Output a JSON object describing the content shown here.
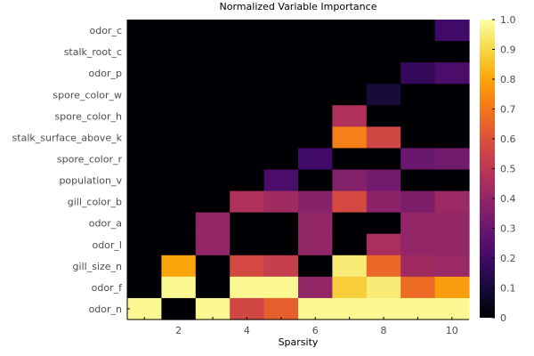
{
  "chart_data": {
    "type": "heatmap",
    "title": "Normalized Variable Importance",
    "xlabel": "Sparsity",
    "ylabel": "",
    "x": [
      1,
      2,
      3,
      4,
      5,
      6,
      7,
      8,
      9,
      10
    ],
    "xlim": [
      0.5,
      10.5
    ],
    "xticks": [
      2,
      4,
      6,
      8,
      10
    ],
    "rows": [
      "odor_c",
      "stalk_root_c",
      "odor_p",
      "spore_color_w",
      "spore_color_h",
      "stalk_surface_above_k",
      "spore_color_r",
      "population_v",
      "gill_color_b",
      "odor_a",
      "odor_l",
      "gill_size_n",
      "odor_f",
      "odor_n"
    ],
    "values": [
      [
        0,
        0,
        0,
        0,
        0,
        0,
        0,
        0,
        0,
        0.2
      ],
      [
        0,
        0,
        0,
        0,
        0,
        0,
        0,
        0,
        0,
        0
      ],
      [
        0,
        0,
        0,
        0,
        0,
        0,
        0,
        0,
        0.17,
        0.22
      ],
      [
        0,
        0,
        0,
        0,
        0,
        0,
        0,
        0.1,
        0,
        0
      ],
      [
        0,
        0,
        0,
        0,
        0,
        0,
        0.47,
        0,
        0,
        0
      ],
      [
        0,
        0,
        0,
        0,
        0,
        0,
        0.72,
        0.56,
        0,
        0
      ],
      [
        0,
        0,
        0,
        0,
        0,
        0.2,
        0,
        0,
        0.3,
        0.32
      ],
      [
        0,
        0,
        0,
        0,
        0.22,
        0,
        0.36,
        0.32,
        0,
        0
      ],
      [
        0,
        0,
        0,
        0.47,
        0.43,
        0.37,
        0.57,
        0.38,
        0.35,
        0.42
      ],
      [
        0,
        0,
        0.4,
        0,
        0,
        0.4,
        0,
        0,
        0.4,
        0.4
      ],
      [
        0,
        0,
        0.4,
        0,
        0,
        0.4,
        0,
        0.45,
        0.4,
        0.4
      ],
      [
        0,
        0.8,
        0,
        0.57,
        0.53,
        0,
        0.95,
        0.66,
        0.43,
        0.42
      ],
      [
        0,
        0.98,
        0,
        0.98,
        0.98,
        0.4,
        0.88,
        0.95,
        0.67,
        0.78
      ],
      [
        0.98,
        0,
        0.98,
        0.56,
        0.64,
        0.98,
        0.98,
        0.98,
        0.98,
        0.98
      ]
    ],
    "colorbar": {
      "min": 0,
      "max": 1,
      "ticks": [
        "0",
        "0.1",
        "0.2",
        "0.3",
        "0.4",
        "0.5",
        "0.6",
        "0.7",
        "0.8",
        "0.9",
        "1.0"
      ],
      "colormap": "inferno"
    },
    "grid": false,
    "legend": "colorbar-right"
  }
}
